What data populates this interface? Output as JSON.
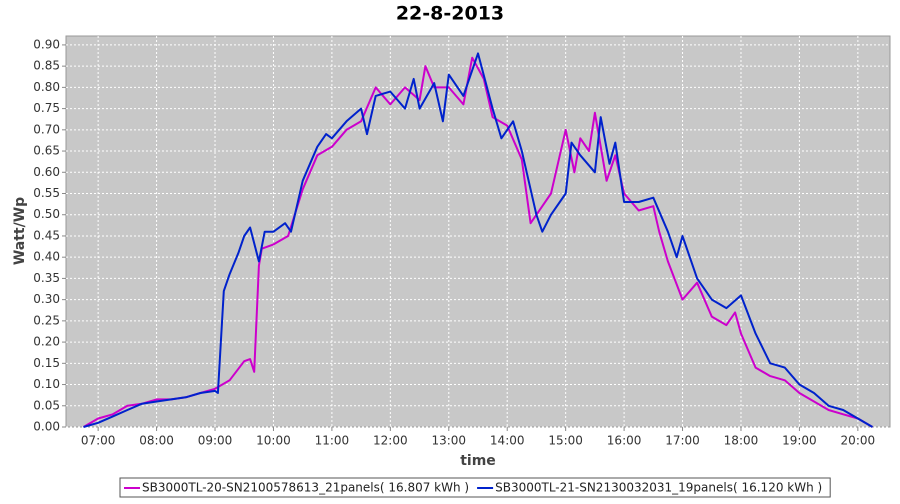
{
  "chart_data": {
    "type": "line",
    "title": "22-8-2013",
    "x_label": "time",
    "y_label": "Watt/Wp",
    "xlim": [
      6.45,
      20.55
    ],
    "ylim": [
      0,
      0.921
    ],
    "xticks": [
      {
        "value": 7,
        "label": "07:00"
      },
      {
        "value": 8,
        "label": "08:00"
      },
      {
        "value": 9,
        "label": "09:00"
      },
      {
        "value": 10,
        "label": "10:00"
      },
      {
        "value": 11,
        "label": "11:00"
      },
      {
        "value": 12,
        "label": "12:00"
      },
      {
        "value": 13,
        "label": "13:00"
      },
      {
        "value": 14,
        "label": "14:00"
      },
      {
        "value": 15,
        "label": "15:00"
      },
      {
        "value": 16,
        "label": "16:00"
      },
      {
        "value": 17,
        "label": "17:00"
      },
      {
        "value": 18,
        "label": "18:00"
      },
      {
        "value": 19,
        "label": "19:00"
      },
      {
        "value": 20,
        "label": "20:00"
      }
    ],
    "yticks": [
      {
        "value": 0,
        "label": "0.00"
      },
      {
        "value": 0.05,
        "label": "0.05"
      },
      {
        "value": 0.1,
        "label": "0.10"
      },
      {
        "value": 0.15,
        "label": "0.15"
      },
      {
        "value": 0.2,
        "label": "0.20"
      },
      {
        "value": 0.25,
        "label": "0.25"
      },
      {
        "value": 0.3,
        "label": "0.30"
      },
      {
        "value": 0.35,
        "label": "0.35"
      },
      {
        "value": 0.4,
        "label": "0.40"
      },
      {
        "value": 0.45,
        "label": "0.45"
      },
      {
        "value": 0.5,
        "label": "0.50"
      },
      {
        "value": 0.55,
        "label": "0.55"
      },
      {
        "value": 0.6,
        "label": "0.60"
      },
      {
        "value": 0.65,
        "label": "0.65"
      },
      {
        "value": 0.7,
        "label": "0.70"
      },
      {
        "value": 0.75,
        "label": "0.75"
      },
      {
        "value": 0.8,
        "label": "0.80"
      },
      {
        "value": 0.85,
        "label": "0.85"
      },
      {
        "value": 0.9,
        "label": "0.90"
      }
    ],
    "grid": true,
    "legend": "bottom",
    "series": [
      {
        "name": "SB3000TL-20-SN2100578613_21panels( 16.807 kWh )",
        "color": "#cc00cc",
        "x": [
          6.75,
          7.0,
          7.25,
          7.5,
          7.75,
          8.0,
          8.25,
          8.5,
          8.75,
          9.0,
          9.25,
          9.5,
          9.6,
          9.67,
          9.75,
          9.8,
          10.0,
          10.25,
          10.5,
          10.75,
          11.0,
          11.25,
          11.5,
          11.75,
          12.0,
          12.25,
          12.5,
          12.6,
          12.75,
          13.0,
          13.25,
          13.4,
          13.6,
          13.75,
          14.0,
          14.25,
          14.4,
          14.6,
          14.75,
          15.0,
          15.15,
          15.25,
          15.4,
          15.5,
          15.7,
          15.85,
          16.0,
          16.25,
          16.5,
          16.6,
          16.75,
          17.0,
          17.25,
          17.5,
          17.75,
          17.9,
          18.0,
          18.25,
          18.5,
          18.75,
          19.0,
          19.25,
          19.5,
          19.75,
          20.0,
          20.25
        ],
        "values": [
          0.0,
          0.02,
          0.03,
          0.05,
          0.055,
          0.065,
          0.065,
          0.07,
          0.08,
          0.09,
          0.11,
          0.155,
          0.16,
          0.13,
          0.38,
          0.42,
          0.43,
          0.45,
          0.56,
          0.64,
          0.66,
          0.7,
          0.72,
          0.8,
          0.76,
          0.8,
          0.77,
          0.85,
          0.8,
          0.8,
          0.76,
          0.87,
          0.82,
          0.73,
          0.71,
          0.63,
          0.48,
          0.52,
          0.55,
          0.7,
          0.6,
          0.68,
          0.65,
          0.74,
          0.58,
          0.64,
          0.55,
          0.51,
          0.52,
          0.46,
          0.39,
          0.3,
          0.34,
          0.26,
          0.24,
          0.27,
          0.22,
          0.14,
          0.12,
          0.11,
          0.08,
          0.06,
          0.04,
          0.03,
          0.02,
          0.0
        ]
      },
      {
        "name": "SB3000TL-21-SN2130032031_19panels( 16.120 kWh )",
        "color": "#0022cc",
        "x": [
          6.75,
          7.0,
          7.25,
          7.5,
          7.75,
          8.0,
          8.25,
          8.5,
          8.75,
          9.0,
          9.05,
          9.15,
          9.25,
          9.4,
          9.5,
          9.6,
          9.75,
          9.85,
          10.0,
          10.2,
          10.3,
          10.5,
          10.75,
          10.9,
          11.0,
          11.25,
          11.5,
          11.6,
          11.75,
          12.0,
          12.25,
          12.4,
          12.5,
          12.75,
          12.9,
          13.0,
          13.25,
          13.5,
          13.75,
          13.9,
          14.1,
          14.25,
          14.5,
          14.6,
          14.75,
          15.0,
          15.1,
          15.25,
          15.5,
          15.6,
          15.75,
          15.85,
          16.0,
          16.25,
          16.5,
          16.75,
          16.9,
          17.0,
          17.25,
          17.5,
          17.75,
          18.0,
          18.25,
          18.5,
          18.75,
          19.0,
          19.25,
          19.5,
          19.75,
          20.0,
          20.25
        ],
        "values": [
          0.0,
          0.01,
          0.025,
          0.04,
          0.055,
          0.06,
          0.065,
          0.07,
          0.08,
          0.085,
          0.08,
          0.32,
          0.36,
          0.41,
          0.45,
          0.47,
          0.39,
          0.46,
          0.46,
          0.48,
          0.46,
          0.58,
          0.66,
          0.69,
          0.68,
          0.72,
          0.75,
          0.69,
          0.78,
          0.79,
          0.75,
          0.82,
          0.75,
          0.81,
          0.72,
          0.83,
          0.78,
          0.88,
          0.75,
          0.68,
          0.72,
          0.65,
          0.5,
          0.46,
          0.5,
          0.55,
          0.67,
          0.64,
          0.6,
          0.73,
          0.62,
          0.67,
          0.53,
          0.53,
          0.54,
          0.46,
          0.4,
          0.45,
          0.35,
          0.3,
          0.28,
          0.31,
          0.22,
          0.15,
          0.14,
          0.1,
          0.08,
          0.05,
          0.04,
          0.02,
          0.0
        ]
      }
    ]
  }
}
